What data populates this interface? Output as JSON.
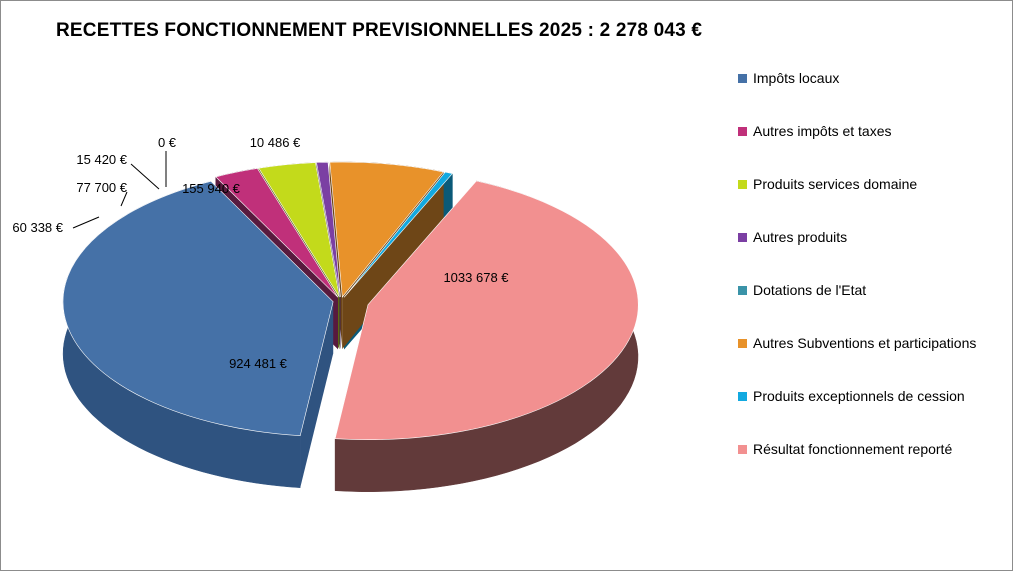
{
  "chart_data": {
    "type": "pie",
    "title": "RECETTES FONCTIONNEMENT PREVISIONNELLES 2025 : 2 278 043 €",
    "slices": [
      {
        "name": "Impôts locaux",
        "value": 924481,
        "label": "924 481 €",
        "color": "#4571a7",
        "side": "#2f5380"
      },
      {
        "name": "Autres impôts et taxes",
        "value": 60338,
        "label": "60 338 €",
        "color": "#c0307a",
        "side": "#581a3e"
      },
      {
        "name": "Produits services domaine",
        "value": 77700,
        "label": "77 700 €",
        "color": "#c3da1b",
        "side": "#5d6a12"
      },
      {
        "name": "Autres produits",
        "value": 15420,
        "label": "15 420 €",
        "color": "#7b3fa3",
        "side": "#3a1f52"
      },
      {
        "name": "Dotations de l'Etat",
        "value": 0,
        "label": "0 €",
        "color": "#3a93a8",
        "side": "#1d4c58"
      },
      {
        "name": "Autres Subventions et participations",
        "value": 155940,
        "label": "155 940 €",
        "color": "#e8922a",
        "side": "#6e4617"
      },
      {
        "name": "Produits exceptionnels de cession",
        "value": 10486,
        "label": "10 486 €",
        "color": "#12a9e0",
        "side": "#0b5a78"
      },
      {
        "name": "Résultat fonctionnement reporté",
        "value": 1033678,
        "label": "1033 678 €",
        "color": "#f29090",
        "side": "#623a3a"
      }
    ],
    "legend_position": "right"
  }
}
